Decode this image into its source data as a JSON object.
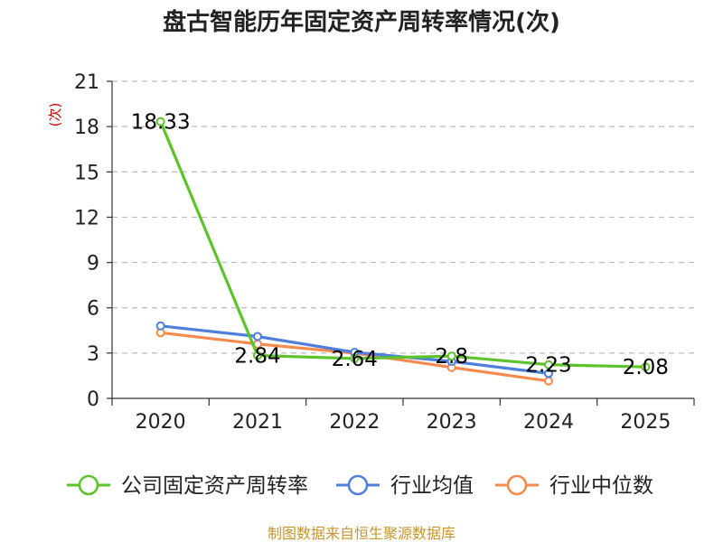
{
  "chart_data": {
    "type": "line",
    "title": "盘古智能历年固定资产周转率情况(次)",
    "ylabel": "(次)",
    "xlabel": "",
    "categories": [
      "2020",
      "2021",
      "2022",
      "2023",
      "2024",
      "2025"
    ],
    "ylim": [
      0,
      21
    ],
    "yticks": [
      0,
      3,
      6,
      9,
      12,
      15,
      18,
      21
    ],
    "grid": true,
    "legend_position": "bottom",
    "series": [
      {
        "name": "公司固定资产周转率",
        "color": "#5cc42a",
        "values": [
          18.33,
          2.84,
          2.64,
          2.8,
          2.23,
          2.08
        ],
        "labels": [
          "18.33",
          "2.84",
          "2.64",
          "2.8",
          "2.23",
          "2.08"
        ]
      },
      {
        "name": "行业均值",
        "color": "#4f7fdc",
        "values": [
          4.8,
          4.1,
          3.05,
          2.45,
          1.65,
          null
        ]
      },
      {
        "name": "行业中位数",
        "color": "#f58a4c",
        "values": [
          4.35,
          3.6,
          3.0,
          2.05,
          1.15,
          null
        ]
      }
    ],
    "source": "制图数据来自恒生聚源数据库"
  }
}
